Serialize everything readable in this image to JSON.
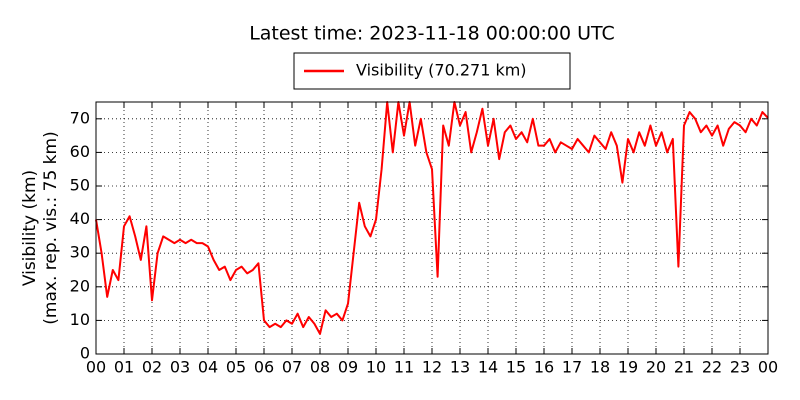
{
  "chart_data": {
    "type": "line",
    "title": "Latest time: 2023-11-18 00:00:00 UTC",
    "ylabel": [
      "Visibility (km)",
      "(max. rep. vis.: 75 km)"
    ],
    "xlim": [
      0,
      24
    ],
    "ylim": [
      0,
      75
    ],
    "xticks": [
      {
        "value": 0,
        "label": "00"
      },
      {
        "value": 1,
        "label": "01"
      },
      {
        "value": 2,
        "label": "02"
      },
      {
        "value": 3,
        "label": "03"
      },
      {
        "value": 4,
        "label": "04"
      },
      {
        "value": 5,
        "label": "05"
      },
      {
        "value": 6,
        "label": "06"
      },
      {
        "value": 7,
        "label": "07"
      },
      {
        "value": 8,
        "label": "08"
      },
      {
        "value": 9,
        "label": "09"
      },
      {
        "value": 10,
        "label": "10"
      },
      {
        "value": 11,
        "label": "11"
      },
      {
        "value": 12,
        "label": "12"
      },
      {
        "value": 13,
        "label": "13"
      },
      {
        "value": 14,
        "label": "14"
      },
      {
        "value": 15,
        "label": "15"
      },
      {
        "value": 16,
        "label": "16"
      },
      {
        "value": 17,
        "label": "17"
      },
      {
        "value": 18,
        "label": "18"
      },
      {
        "value": 19,
        "label": "19"
      },
      {
        "value": 20,
        "label": "20"
      },
      {
        "value": 21,
        "label": "21"
      },
      {
        "value": 22,
        "label": "22"
      },
      {
        "value": 23,
        "label": "23"
      },
      {
        "value": 24,
        "label": "00"
      }
    ],
    "yticks": [
      0,
      10,
      20,
      30,
      40,
      50,
      60,
      70
    ],
    "grid": true,
    "x": [
      0,
      0.2,
      0.4,
      0.6,
      0.8,
      1,
      1.2,
      1.4,
      1.6,
      1.8,
      2,
      2.2,
      2.4,
      2.6,
      2.8,
      3,
      3.2,
      3.4,
      3.6,
      3.8,
      4,
      4.2,
      4.4,
      4.6,
      4.8,
      5,
      5.2,
      5.4,
      5.6,
      5.8,
      6,
      6.2,
      6.4,
      6.6,
      6.8,
      7,
      7.2,
      7.4,
      7.6,
      7.8,
      8,
      8.2,
      8.4,
      8.6,
      8.8,
      9,
      9.2,
      9.4,
      9.6,
      9.8,
      10,
      10.2,
      10.4,
      10.6,
      10.8,
      11,
      11.2,
      11.4,
      11.6,
      11.8,
      12,
      12.2,
      12.4,
      12.6,
      12.8,
      13,
      13.2,
      13.4,
      13.6,
      13.8,
      14,
      14.2,
      14.4,
      14.6,
      14.8,
      15,
      15.2,
      15.4,
      15.6,
      15.8,
      16,
      16.2,
      16.4,
      16.6,
      16.8,
      17,
      17.2,
      17.4,
      17.6,
      17.8,
      18,
      18.2,
      18.4,
      18.6,
      18.8,
      19,
      19.2,
      19.4,
      19.6,
      19.8,
      20,
      20.2,
      20.4,
      20.6,
      20.8,
      21,
      21.2,
      21.4,
      21.6,
      21.8,
      22,
      22.2,
      22.4,
      22.6,
      22.8,
      23,
      23.2,
      23.4,
      23.6,
      23.8,
      24
    ],
    "series": [
      {
        "name": "Visibility (70.271 km)",
        "color": "#ff0000",
        "values": [
          40,
          30,
          17,
          25,
          22,
          38,
          41,
          35,
          28,
          38,
          16,
          30,
          35,
          34,
          33,
          34,
          33,
          34,
          33,
          33,
          32,
          28,
          25,
          26,
          22,
          25,
          26,
          24,
          25,
          27,
          10,
          8,
          9,
          8,
          10,
          9,
          12,
          8,
          11,
          9,
          6,
          13,
          11,
          12,
          10,
          15,
          30,
          45,
          38,
          35,
          40,
          55,
          75,
          60,
          75,
          65,
          75,
          62,
          70,
          60,
          55,
          23,
          68,
          62,
          75,
          68,
          72,
          60,
          66,
          73,
          62,
          70,
          58,
          66,
          68,
          64,
          66,
          63,
          70,
          62,
          62,
          64,
          60,
          63,
          62,
          61,
          64,
          62,
          60,
          65,
          63,
          61,
          66,
          62,
          51,
          64,
          60,
          66,
          62,
          68,
          62,
          66,
          60,
          64,
          26,
          68,
          72,
          70,
          66,
          68,
          65,
          68,
          62,
          67,
          69,
          68,
          66,
          70,
          68,
          72,
          70.271
        ]
      }
    ]
  }
}
